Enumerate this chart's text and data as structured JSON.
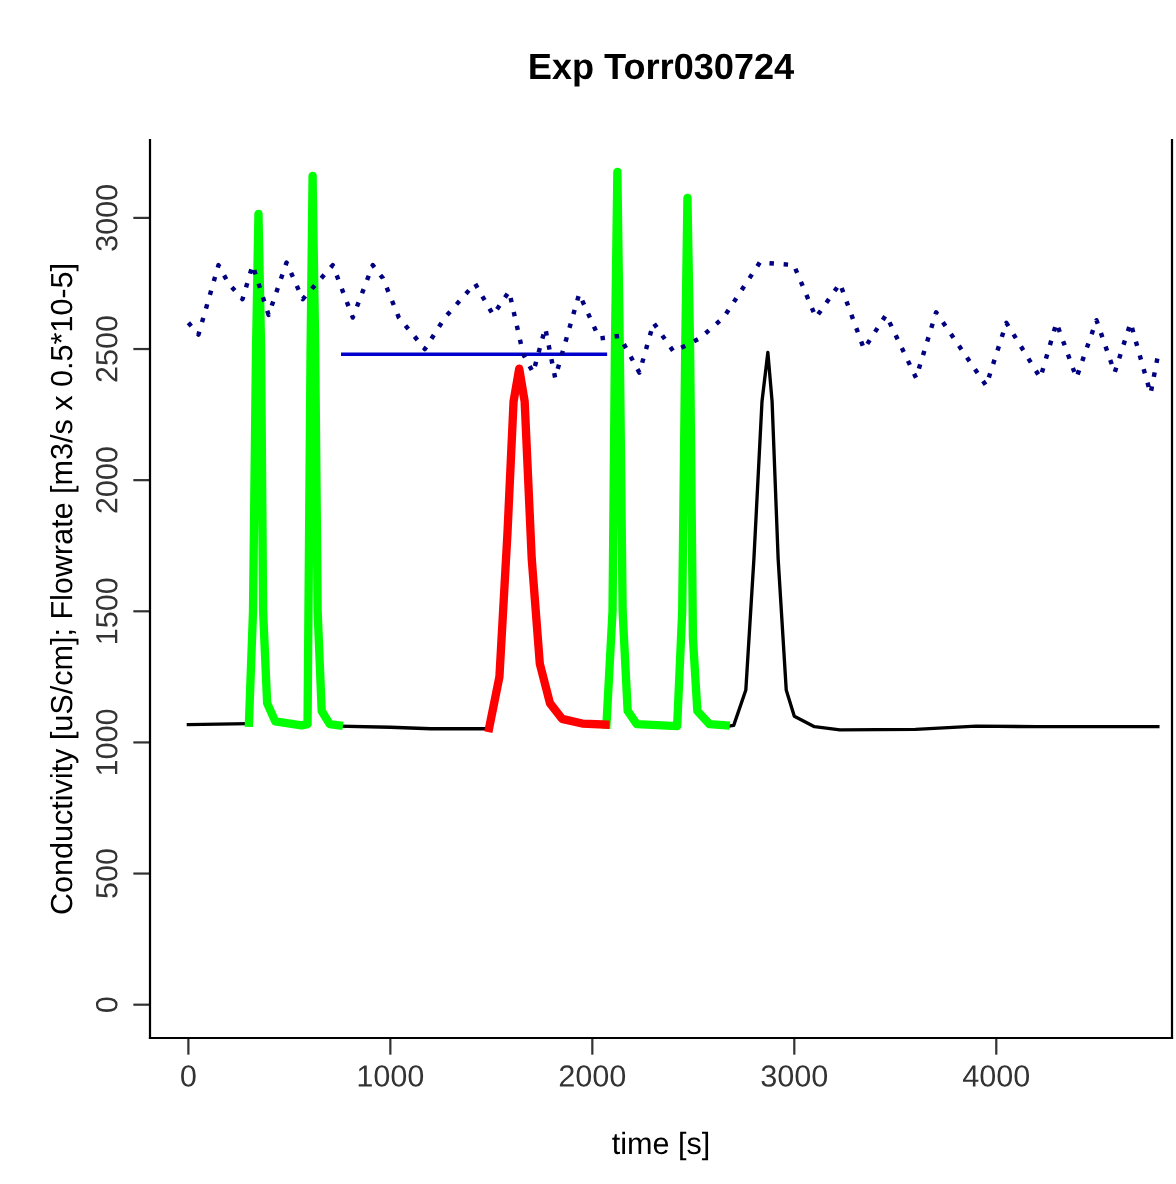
{
  "chart_data": {
    "type": "line",
    "title": "Exp Torr030724",
    "xlabel": "time [s]",
    "ylabel": "Conductivity [uS/cm]; Flowrate [m3/s x 0.5*10-5]",
    "xlim": [
      -190,
      4870
    ],
    "ylim": [
      -127,
      3297
    ],
    "xticks": [
      0,
      1000,
      2000,
      3000,
      4000
    ],
    "yticks": [
      0,
      500,
      1000,
      1500,
      2000,
      2500,
      3000
    ],
    "grid": false,
    "legend": false,
    "series": [
      {
        "color": "#000000",
        "x": [
          0,
          150,
          300,
          null,
          745,
          1000,
          1200,
          1500,
          null,
          2660,
          2700,
          2760,
          2800,
          2840,
          2869,
          2890,
          2920,
          2960,
          3000,
          3100,
          3226,
          3600,
          3900,
          4200,
          4800
        ],
        "values": [
          1068,
          1070,
          1072,
          null,
          1062,
          1058,
          1052,
          1052,
          null,
          1060,
          1065,
          1200,
          1700,
          2300,
          2487,
          2300,
          1700,
          1200,
          1100,
          1060,
          1048,
          1050,
          1062,
          1060,
          1060
        ]
      },
      {
        "color": "#00ff00",
        "x": [
          300,
          320,
          335,
          347,
          360,
          370,
          390,
          430,
          560,
          590,
          605,
          615,
          628,
          640,
          660,
          700,
          745,
          null,
          2070,
          2100,
          2112,
          2124,
          2136,
          2150,
          2175,
          2220,
          2420,
          2445,
          2460,
          2471,
          2484,
          2498,
          2520,
          2580,
          2660
        ],
        "values": [
          1075,
          1500,
          2500,
          3015,
          2500,
          1500,
          1150,
          1080,
          1065,
          1070,
          2500,
          3160,
          2500,
          1500,
          1120,
          1070,
          1065,
          null,
          1068,
          1500,
          2500,
          3175,
          2500,
          1500,
          1120,
          1070,
          1062,
          1500,
          2500,
          3076,
          2500,
          1400,
          1120,
          1070,
          1065
        ]
      },
      {
        "color": "#ff0000",
        "x": [
          1489,
          1540,
          1580,
          1610,
          1638,
          1665,
          1700,
          1740,
          1790,
          1850,
          1950,
          2065
        ],
        "values": [
          1055,
          1250,
          1800,
          2300,
          2425,
          2300,
          1700,
          1300,
          1150,
          1090,
          1072,
          1068
        ]
      },
      {
        "color": "#0000cc",
        "x": [
          764,
          2065
        ],
        "values": [
          2480,
          2480
        ]
      },
      {
        "color": "#000080",
        "line_style": "dotted",
        "x": [
          0,
          50,
          149,
          199,
          268,
          318,
          397,
          486,
          566,
          715,
          814,
          913,
          963,
          1042,
          1171,
          1270,
          1419,
          1509,
          1588,
          1658,
          1707,
          1767,
          1816,
          1935,
          2035,
          2134,
          2233,
          2303,
          2402,
          2531,
          2650,
          2829,
          2998,
          3107,
          3226,
          3345,
          3454,
          3603,
          3702,
          3950,
          4050,
          4218,
          4298,
          4397,
          4496,
          4586,
          4665,
          4764,
          4804
        ],
        "values": [
          2600,
          2555,
          2820,
          2750,
          2690,
          2820,
          2630,
          2830,
          2690,
          2820,
          2620,
          2820,
          2770,
          2620,
          2500,
          2620,
          2750,
          2630,
          2720,
          2480,
          2410,
          2580,
          2390,
          2710,
          2540,
          2550,
          2410,
          2600,
          2490,
          2540,
          2620,
          2830,
          2820,
          2620,
          2750,
          2500,
          2630,
          2390,
          2640,
          2360,
          2600,
          2390,
          2600,
          2390,
          2610,
          2410,
          2600,
          2330,
          2490
        ]
      }
    ]
  }
}
